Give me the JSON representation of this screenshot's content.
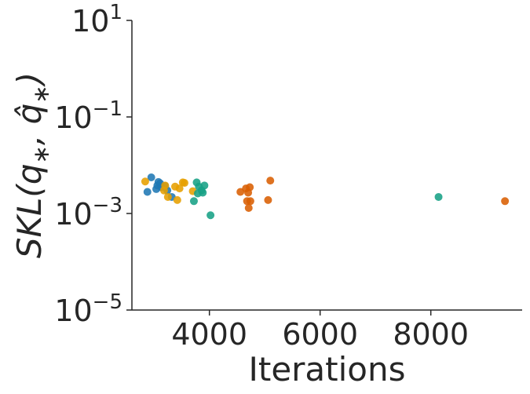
{
  "chart_data": {
    "type": "scatter",
    "xlabel": "Iterations",
    "ylabel": "SKL(q*, q̂*)",
    "yscale": "log",
    "xlim": [
      2600,
      9650
    ],
    "ylim": [
      1e-05,
      10
    ],
    "x_ticks": [
      4000,
      6000,
      8000
    ],
    "x_tick_labels": [
      "4000",
      "6000",
      "8000"
    ],
    "y_ticks": [
      {
        "value": 10,
        "base": "10",
        "exp": "1"
      },
      {
        "value": 0.1,
        "base": "10",
        "exp": "−1"
      },
      {
        "value": 0.001,
        "base": "10",
        "exp": "−3"
      },
      {
        "value": 1e-05,
        "base": "10",
        "exp": "−5"
      }
    ],
    "grid": false,
    "legend": "none",
    "series": [
      {
        "color": "#1f77b4",
        "points": [
          {
            "x": 2950,
            "y": 0.0056
          },
          {
            "x": 3080,
            "y": 0.0045
          },
          {
            "x": 3060,
            "y": 0.0038
          },
          {
            "x": 3110,
            "y": 0.0042
          },
          {
            "x": 3040,
            "y": 0.0032
          },
          {
            "x": 3130,
            "y": 0.0035
          },
          {
            "x": 3200,
            "y": 0.0037
          },
          {
            "x": 2880,
            "y": 0.0028
          },
          {
            "x": 3240,
            "y": 0.003
          },
          {
            "x": 3320,
            "y": 0.0022
          }
        ]
      },
      {
        "color": "#e69f00",
        "points": [
          {
            "x": 2840,
            "y": 0.0046
          },
          {
            "x": 3180,
            "y": 0.003
          },
          {
            "x": 3250,
            "y": 0.0022
          },
          {
            "x": 3380,
            "y": 0.0036
          },
          {
            "x": 3460,
            "y": 0.0033
          },
          {
            "x": 3520,
            "y": 0.0044
          },
          {
            "x": 3420,
            "y": 0.0019
          },
          {
            "x": 3700,
            "y": 0.0029
          },
          {
            "x": 3550,
            "y": 0.0043
          },
          {
            "x": 3200,
            "y": 0.0038
          }
        ]
      },
      {
        "color": "#17a085",
        "points": [
          {
            "x": 3770,
            "y": 0.0044
          },
          {
            "x": 3810,
            "y": 0.0036
          },
          {
            "x": 3860,
            "y": 0.003
          },
          {
            "x": 3790,
            "y": 0.0026
          },
          {
            "x": 3880,
            "y": 0.0027
          },
          {
            "x": 3910,
            "y": 0.0038
          },
          {
            "x": 3720,
            "y": 0.0018
          },
          {
            "x": 4020,
            "y": 0.00092
          },
          {
            "x": 8140,
            "y": 0.0022
          }
        ]
      },
      {
        "color": "#d95f02",
        "points": [
          {
            "x": 4560,
            "y": 0.0028
          },
          {
            "x": 4660,
            "y": 0.0033
          },
          {
            "x": 4730,
            "y": 0.0035
          },
          {
            "x": 4700,
            "y": 0.0027
          },
          {
            "x": 4680,
            "y": 0.0018
          },
          {
            "x": 4740,
            "y": 0.0018
          },
          {
            "x": 4710,
            "y": 0.0013
          },
          {
            "x": 5060,
            "y": 0.0019
          },
          {
            "x": 5100,
            "y": 0.0048
          },
          {
            "x": 9340,
            "y": 0.0018
          }
        ]
      }
    ]
  }
}
